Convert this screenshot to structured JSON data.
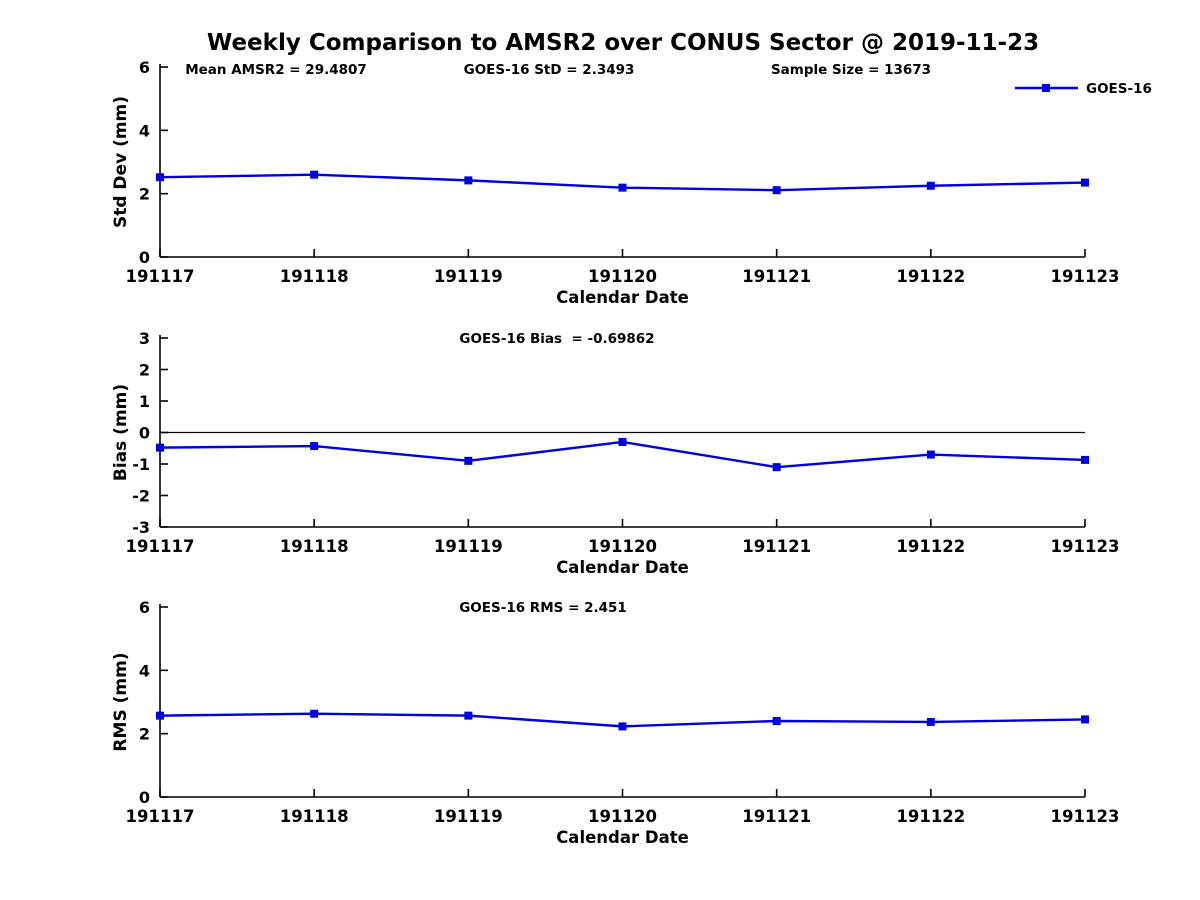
{
  "figure": {
    "title": "Weekly Comparison to AMSR2 over CONUS Sector @ 2019-11-23",
    "background_color": "#ffffff",
    "line_color": "#0000e6",
    "axis_color": "#000000"
  },
  "chart_data": [
    {
      "type": "line",
      "ylabel": "Std Dev (mm)",
      "xlabel": "Calendar Date",
      "categories": [
        "191117",
        "191118",
        "191119",
        "191120",
        "191121",
        "191122",
        "191123"
      ],
      "series": [
        {
          "name": "GOES-16",
          "color": "#0000e6",
          "marker": "square",
          "values": [
            2.52,
            2.6,
            2.42,
            2.19,
            2.11,
            2.25,
            2.35
          ]
        }
      ],
      "ylim": [
        0,
        6
      ],
      "yticks": [
        0,
        2,
        4,
        6
      ],
      "grid": false,
      "legend": {
        "label": "GOES-16",
        "position": "top-right",
        "box": false
      },
      "annotations": [
        "Mean AMSR2 = 29.4807",
        "GOES-16 StD = 2.3493",
        "Sample Size = 13673"
      ]
    },
    {
      "type": "line",
      "ylabel": "Bias (mm)",
      "xlabel": "Calendar Date",
      "categories": [
        "191117",
        "191118",
        "191119",
        "191120",
        "191121",
        "191122",
        "191123"
      ],
      "series": [
        {
          "name": "GOES-16",
          "color": "#0000e6",
          "marker": "square",
          "values": [
            -0.48,
            -0.43,
            -0.9,
            -0.3,
            -1.1,
            -0.7,
            -0.87
          ]
        }
      ],
      "ylim": [
        -3,
        3
      ],
      "yticks": [
        3,
        2,
        1,
        0,
        -1,
        -2,
        -3
      ],
      "zero_line": true,
      "grid": false,
      "annotations": [
        "GOES-16 Bias  = -0.69862"
      ]
    },
    {
      "type": "line",
      "ylabel": "RMS (mm)",
      "xlabel": "Calendar Date",
      "categories": [
        "191117",
        "191118",
        "191119",
        "191120",
        "191121",
        "191122",
        "191123"
      ],
      "series": [
        {
          "name": "GOES-16",
          "color": "#0000e6",
          "marker": "square",
          "values": [
            2.57,
            2.63,
            2.57,
            2.23,
            2.4,
            2.37,
            2.45
          ]
        }
      ],
      "ylim": [
        0,
        6
      ],
      "yticks": [
        0,
        2,
        4,
        6
      ],
      "grid": false,
      "annotations": [
        "GOES-16 RMS = 2.451"
      ]
    }
  ]
}
